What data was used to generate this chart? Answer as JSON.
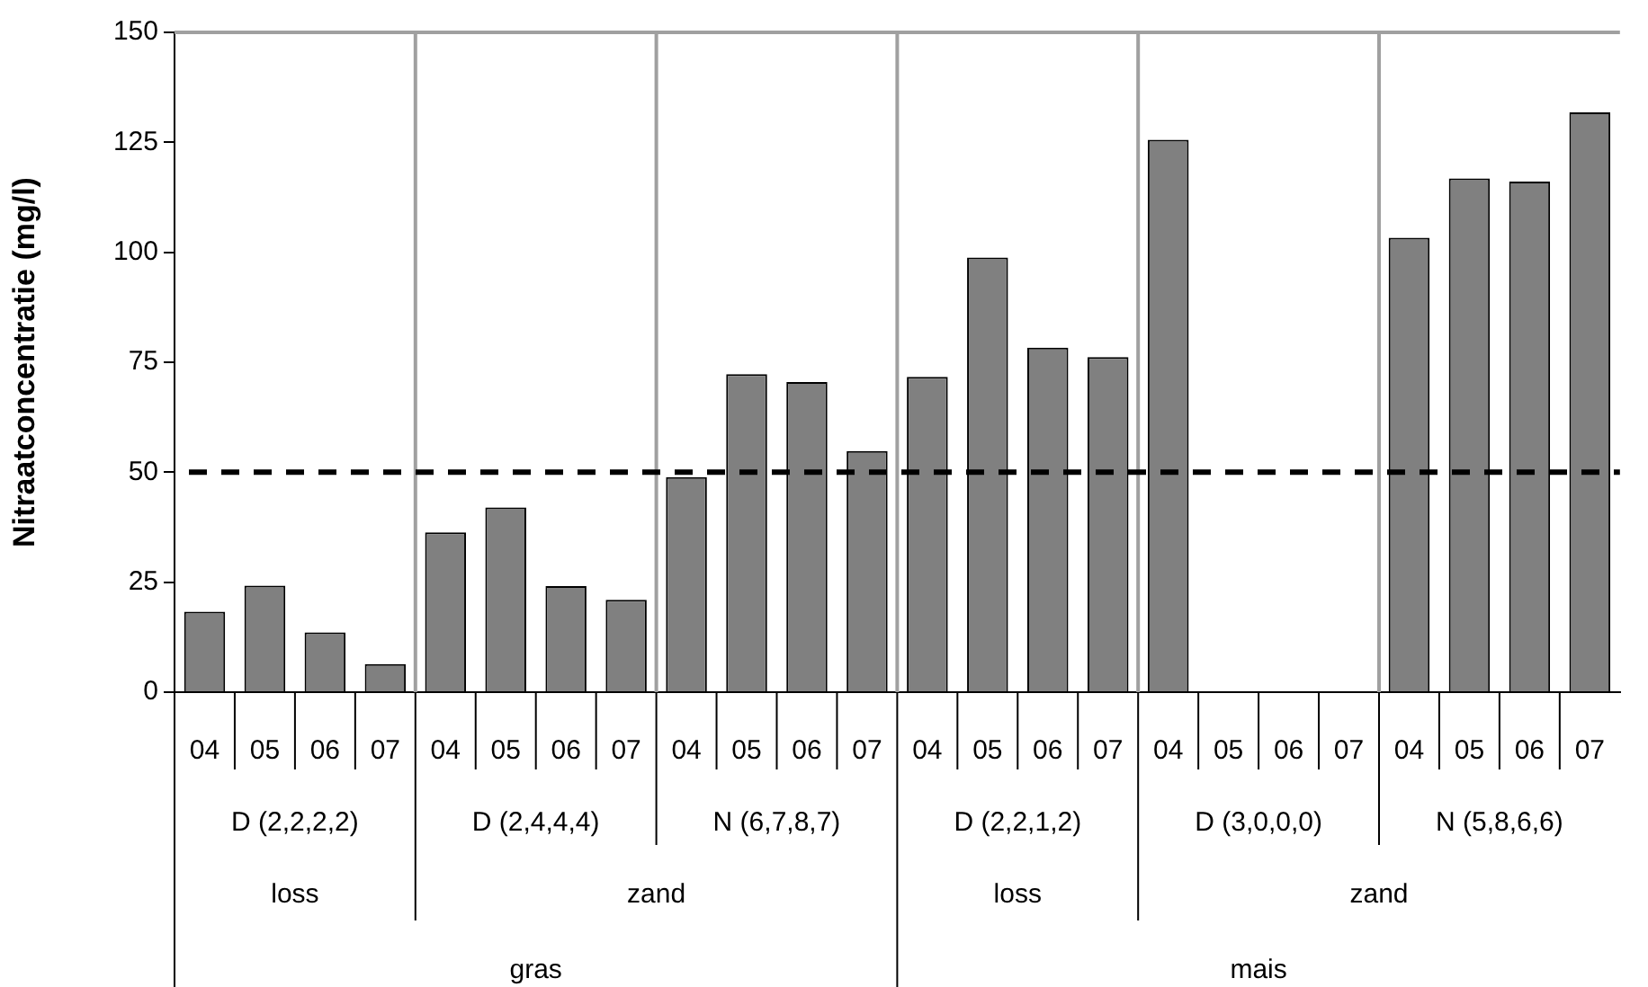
{
  "chart_data": {
    "type": "bar",
    "ylabel": "Nitraatconcentratie (mg/l)",
    "categories": [
      "04",
      "05",
      "06",
      "07",
      "04",
      "05",
      "06",
      "07",
      "04",
      "05",
      "06",
      "07",
      "04",
      "05",
      "06",
      "07",
      "04",
      "05",
      "06",
      "07",
      "04",
      "05",
      "06",
      "07"
    ],
    "values": [
      18.3,
      24.2,
      13.6,
      6.4,
      36.3,
      42.0,
      24.1,
      21.0,
      48.9,
      72.3,
      70.5,
      54.8,
      71.7,
      98.8,
      78.3,
      76.2,
      125.6,
      null,
      null,
      null,
      103.3,
      116.8,
      116.1,
      131.8
    ],
    "color": "#808080",
    "ylim": [
      0,
      150
    ],
    "yticks": [
      0,
      25,
      50,
      75,
      100,
      125,
      150
    ],
    "grid": false,
    "legend": false,
    "ref_lines": [
      {
        "axis": "y",
        "value": 50,
        "color": "#000000",
        "line_style": "dashed"
      }
    ],
    "annotations": [
      "D (2,2,2,2)",
      "D (2,4,4,4)",
      "N (6,7,8,7)",
      "D (2,2,1,2)",
      "D (3,0,0,0)",
      "N (5,8,6,6)",
      "loss",
      "zand",
      "loss",
      "zand",
      "gras",
      "mais"
    ]
  }
}
